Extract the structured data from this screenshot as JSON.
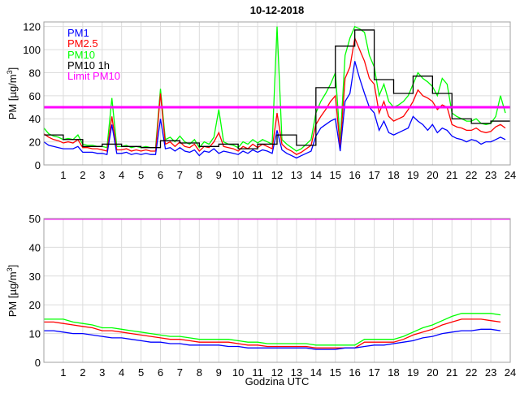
{
  "chart_data": [
    {
      "type": "line",
      "title": "10-12-2018",
      "xlabel": "",
      "ylabel": "PM [µg/m",
      "ylabel_sup": "3",
      "ylabel_end": "]",
      "xlim": [
        0,
        24
      ],
      "ylim": [
        0,
        124
      ],
      "grid": true,
      "legend_position": "top-left",
      "xticks": [
        "1",
        "2",
        "3",
        "4",
        "5",
        "6",
        "7",
        "8",
        "9",
        "10",
        "11",
        "12",
        "13",
        "14",
        "15",
        "16",
        "17",
        "18",
        "19",
        "20",
        "21",
        "22",
        "23",
        "24"
      ],
      "yticks": [
        "0",
        "20",
        "40",
        "60",
        "80",
        "100",
        "120"
      ],
      "ytick_values": [
        0,
        20,
        40,
        60,
        80,
        100,
        120
      ],
      "x_step_hours": 0.25,
      "series": [
        {
          "name": "PM1",
          "color": "#0000ff",
          "values": [
            20,
            17,
            16,
            15,
            14,
            14,
            14,
            16,
            11,
            11,
            11,
            10,
            10,
            9,
            35,
            10,
            10,
            11,
            9,
            10,
            9,
            10,
            9,
            9,
            40,
            14,
            15,
            12,
            15,
            12,
            11,
            13,
            8,
            12,
            11,
            14,
            10,
            12,
            11,
            10,
            9,
            12,
            10,
            13,
            11,
            13,
            12,
            10,
            30,
            13,
            10,
            8,
            6,
            8,
            10,
            12,
            25,
            32,
            35,
            38,
            40,
            12,
            55,
            62,
            90,
            75,
            62,
            50,
            45,
            30,
            38,
            28,
            26,
            28,
            30,
            32,
            42,
            38,
            35,
            30,
            35,
            28,
            32,
            30,
            25,
            23,
            22,
            20,
            22,
            21,
            18,
            20,
            20,
            22,
            24,
            22
          ]
        },
        {
          "name": "PM2.5",
          "color": "#ff0000",
          "values": [
            27,
            24,
            22,
            21,
            19,
            20,
            19,
            22,
            15,
            15,
            14,
            14,
            13,
            12,
            42,
            13,
            13,
            14,
            12,
            13,
            12,
            13,
            12,
            12,
            62,
            18,
            20,
            16,
            20,
            16,
            15,
            18,
            12,
            16,
            15,
            20,
            28,
            16,
            15,
            14,
            12,
            16,
            14,
            18,
            15,
            18,
            16,
            14,
            45,
            18,
            14,
            12,
            9,
            11,
            14,
            17,
            35,
            42,
            48,
            55,
            60,
            15,
            75,
            85,
            110,
            100,
            90,
            75,
            70,
            45,
            55,
            42,
            38,
            40,
            42,
            48,
            55,
            65,
            60,
            58,
            55,
            48,
            52,
            50,
            35,
            33,
            32,
            30,
            30,
            32,
            29,
            28,
            29,
            33,
            35,
            32
          ]
        },
        {
          "name": "PM10",
          "color": "#00ff00",
          "values": [
            32,
            27,
            25,
            24,
            22,
            23,
            22,
            26,
            18,
            17,
            17,
            16,
            16,
            15,
            58,
            16,
            16,
            17,
            15,
            16,
            15,
            16,
            15,
            15,
            66,
            22,
            24,
            20,
            25,
            20,
            18,
            22,
            15,
            20,
            18,
            24,
            48,
            20,
            18,
            17,
            15,
            20,
            18,
            22,
            19,
            22,
            20,
            18,
            120,
            22,
            18,
            15,
            12,
            14,
            18,
            22,
            45,
            55,
            62,
            70,
            80,
            20,
            95,
            110,
            120,
            118,
            115,
            95,
            85,
            60,
            70,
            55,
            50,
            52,
            55,
            60,
            70,
            80,
            75,
            72,
            68,
            60,
            75,
            70,
            45,
            42,
            40,
            38,
            38,
            40,
            36,
            35,
            36,
            42,
            60,
            45
          ]
        },
        {
          "name": "PM10 1h",
          "color": "#000000",
          "step": true,
          "values": [
            26,
            22,
            16,
            18,
            16,
            15,
            21,
            19,
            16,
            18,
            14,
            18,
            26,
            17,
            67,
            103,
            117,
            74,
            62,
            77,
            62,
            40,
            36,
            38
          ]
        },
        {
          "name": "Limit PM10",
          "color": "#ff00ff",
          "value": 50
        }
      ]
    },
    {
      "type": "line",
      "title": "",
      "xlabel": "Godzina UTC",
      "ylabel": "PM [µg/m",
      "ylabel_sup": "3",
      "ylabel_end": "]",
      "xlim": [
        0,
        24
      ],
      "ylim": [
        0,
        50
      ],
      "grid": true,
      "xticks": [
        "1",
        "2",
        "3",
        "4",
        "5",
        "6",
        "7",
        "8",
        "9",
        "10",
        "11",
        "12",
        "13",
        "14",
        "15",
        "16",
        "17",
        "18",
        "19",
        "20",
        "21",
        "22",
        "23",
        "24"
      ],
      "yticks": [
        "0",
        "10",
        "20",
        "30",
        "40",
        "50"
      ],
      "ytick_values": [
        0,
        10,
        20,
        30,
        40,
        50
      ],
      "x_step_hours": 0.5,
      "series": [
        {
          "name": "PM1",
          "color": "#0000ff",
          "values": [
            11,
            11,
            10.5,
            10,
            10,
            9.5,
            9,
            8.5,
            8.5,
            8,
            7.5,
            7,
            7,
            6.5,
            6.5,
            6,
            6,
            6,
            6,
            5.5,
            5.5,
            5,
            5,
            5,
            5,
            5,
            5,
            5,
            4.5,
            4.5,
            4.5,
            5,
            5,
            5.5,
            6,
            6,
            6.5,
            7,
            7.5,
            8.5,
            9,
            10,
            10.5,
            11,
            11,
            11.5,
            11.5,
            11
          ]
        },
        {
          "name": "PM2.5",
          "color": "#ff0000",
          "values": [
            14,
            14,
            13.5,
            13,
            12.5,
            12,
            11,
            11,
            10.5,
            10,
            9.5,
            9,
            8.5,
            8,
            8,
            7.5,
            7,
            7,
            7,
            7,
            6.5,
            6,
            6,
            5.5,
            5.5,
            5.5,
            5.5,
            5.5,
            5,
            5,
            5,
            5,
            5,
            7,
            7,
            7,
            7,
            8,
            9.5,
            10.5,
            11.5,
            13,
            14,
            15,
            15,
            15,
            14.5,
            14
          ]
        },
        {
          "name": "PM10",
          "color": "#00ff00",
          "values": [
            15,
            15,
            15,
            14,
            13.5,
            13,
            12,
            12,
            11.5,
            11,
            10.5,
            10,
            9.5,
            9,
            9,
            8.5,
            8,
            8,
            8,
            8,
            7.5,
            7,
            7,
            6.5,
            6.5,
            6.5,
            6.5,
            6.5,
            6,
            6,
            6,
            6,
            6,
            8,
            8,
            8,
            8,
            9,
            10.5,
            12,
            13,
            14.5,
            16,
            17,
            17,
            17,
            17,
            16.5
          ]
        },
        {
          "name": "Limit PM10",
          "color": "#ff00ff",
          "value": 50
        }
      ]
    }
  ]
}
